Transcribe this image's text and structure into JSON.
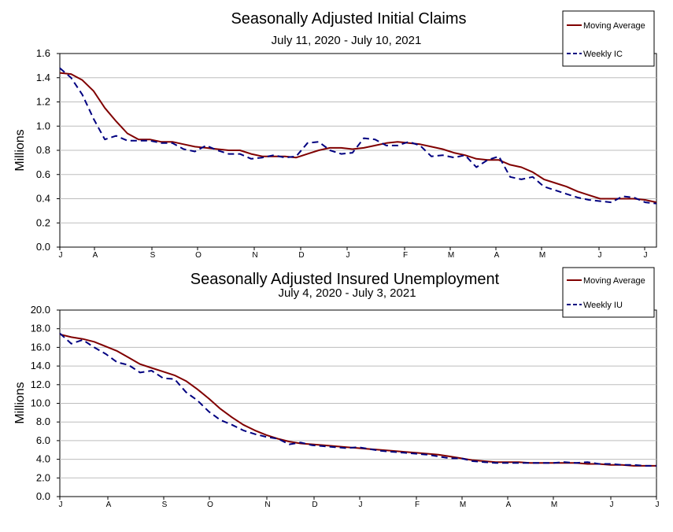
{
  "chart_data": [
    {
      "type": "line",
      "title": "Seasonally Adjusted Initial Claims",
      "subtitle": "July 11, 2020 - July 10, 2021",
      "ylabel": "Millions",
      "ylim": [
        0,
        1.6
      ],
      "yticks": [
        "0.0",
        "0.2",
        "0.4",
        "0.6",
        "0.8",
        "1.0",
        "1.2",
        "1.4",
        "1.6"
      ],
      "x_month_labels": [
        "J",
        "A",
        "S",
        "O",
        "N",
        "D",
        "J",
        "F",
        "M",
        "A",
        "M",
        "J",
        "J"
      ],
      "grid": true,
      "legend_position": "top-right",
      "series": [
        {
          "name": "Moving Average",
          "style": "solid",
          "color": "#800000",
          "values": [
            1.44,
            1.43,
            1.38,
            1.29,
            1.15,
            1.04,
            0.94,
            0.89,
            0.89,
            0.87,
            0.87,
            0.85,
            0.83,
            0.82,
            0.81,
            0.8,
            0.8,
            0.77,
            0.75,
            0.75,
            0.75,
            0.74,
            0.77,
            0.8,
            0.82,
            0.82,
            0.81,
            0.82,
            0.84,
            0.86,
            0.87,
            0.86,
            0.85,
            0.83,
            0.81,
            0.78,
            0.76,
            0.73,
            0.72,
            0.72,
            0.68,
            0.66,
            0.62,
            0.56,
            0.53,
            0.5,
            0.46,
            0.43,
            0.4,
            0.4,
            0.4,
            0.4,
            0.39,
            0.37
          ]
        },
        {
          "name": "Weekly IC",
          "style": "dashed",
          "color": "#000080",
          "values": [
            1.48,
            1.4,
            1.26,
            1.06,
            0.89,
            0.92,
            0.88,
            0.88,
            0.88,
            0.86,
            0.86,
            0.81,
            0.79,
            0.84,
            0.8,
            0.77,
            0.77,
            0.73,
            0.74,
            0.76,
            0.74,
            0.75,
            0.86,
            0.87,
            0.8,
            0.77,
            0.78,
            0.9,
            0.89,
            0.84,
            0.84,
            0.87,
            0.84,
            0.75,
            0.76,
            0.74,
            0.76,
            0.66,
            0.72,
            0.75,
            0.58,
            0.56,
            0.58,
            0.5,
            0.47,
            0.44,
            0.41,
            0.39,
            0.38,
            0.37,
            0.42,
            0.41,
            0.37,
            0.36
          ]
        }
      ]
    },
    {
      "type": "line",
      "title": "Seasonally Adjusted Insured Unemployment",
      "subtitle": "July 4, 2020 - July 3, 2021",
      "ylabel": "Millions",
      "ylim": [
        0,
        20
      ],
      "yticks": [
        "0.0",
        "2.0",
        "4.0",
        "6.0",
        "8.0",
        "10.0",
        "12.0",
        "14.0",
        "16.0",
        "18.0",
        "20.0"
      ],
      "x_month_labels": [
        "J",
        "A",
        "S",
        "O",
        "N",
        "D",
        "J",
        "F",
        "M",
        "A",
        "M",
        "J",
        "J"
      ],
      "grid": true,
      "legend_position": "top-right",
      "series": [
        {
          "name": "Moving Average",
          "style": "solid",
          "color": "#800000",
          "values": [
            17.4,
            17.1,
            16.9,
            16.6,
            16.1,
            15.6,
            14.9,
            14.2,
            13.8,
            13.4,
            13.0,
            12.4,
            11.5,
            10.5,
            9.4,
            8.5,
            7.7,
            7.1,
            6.6,
            6.2,
            5.9,
            5.7,
            5.6,
            5.5,
            5.4,
            5.3,
            5.2,
            5.1,
            5.0,
            4.9,
            4.8,
            4.7,
            4.6,
            4.5,
            4.3,
            4.1,
            3.9,
            3.8,
            3.7,
            3.7,
            3.7,
            3.6,
            3.6,
            3.6,
            3.6,
            3.6,
            3.5,
            3.5,
            3.4,
            3.4,
            3.3,
            3.3,
            3.3
          ]
        },
        {
          "name": "Weekly IU",
          "style": "dashed",
          "color": "#000080",
          "values": [
            17.5,
            16.4,
            16.8,
            16.0,
            15.3,
            14.4,
            14.1,
            13.3,
            13.5,
            12.7,
            12.6,
            11.2,
            10.3,
            9.1,
            8.2,
            7.7,
            7.1,
            6.7,
            6.4,
            6.2,
            5.6,
            5.8,
            5.5,
            5.4,
            5.3,
            5.2,
            5.3,
            5.1,
            4.9,
            4.8,
            4.7,
            4.6,
            4.5,
            4.3,
            4.1,
            4.1,
            3.8,
            3.7,
            3.6,
            3.6,
            3.6,
            3.6,
            3.6,
            3.6,
            3.7,
            3.6,
            3.7,
            3.5,
            3.5,
            3.4,
            3.4,
            3.3,
            3.3
          ]
        }
      ]
    }
  ]
}
